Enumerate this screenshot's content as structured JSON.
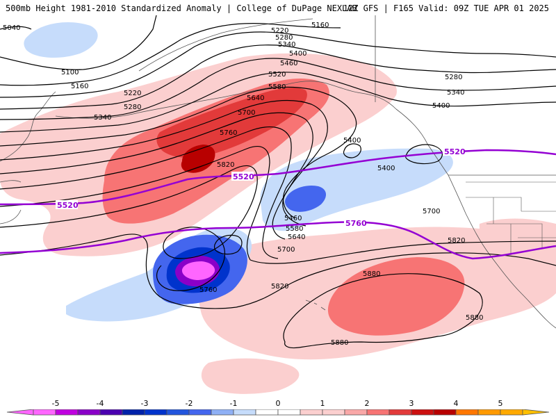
{
  "header": {
    "left": "500mb Height 1981-2010 Standardized Anomaly | College of DuPage NEXLAB",
    "right": "12Z GFS | F165 Valid: 09Z TUE APR 01 2025"
  },
  "colors": {
    "neg5": "#ff66ff",
    "neg4": "#8a00c8",
    "neg3": "#0033cc",
    "neg2": "#4466ee",
    "neg1": "#c6dcfb",
    "pos1": "#fbcfcf",
    "pos2": "#f77474",
    "pos3": "#e23a3a",
    "pos4": "#b80000",
    "pos5": "#ffaa00",
    "normal_line": "#9400d3",
    "height_contour": "#000000",
    "coastline": "#555555"
  },
  "contour_labels": {
    "c5040": "5040",
    "c5100": "5100",
    "c5160a": "5160",
    "c5160b": "5160",
    "c5220a": "5220",
    "c5220b": "5220",
    "c5280a": "5280",
    "c5280b": "5280",
    "c5280c": "5280",
    "c5340a": "5340",
    "c5340b": "5340",
    "c5340c": "5340",
    "c5400a": "5400",
    "c5400b": "5400",
    "c5400c": "5400",
    "c5400d": "5400",
    "c5460a": "5460",
    "c5460b": "5460",
    "c5520": "5520",
    "c5580a": "5580",
    "c5580b": "5580",
    "c5640a": "5640",
    "c5640b": "5640",
    "c5700a": "5700",
    "c5700b": "5700",
    "c5700c": "5700",
    "c5760a": "5760",
    "c5760b": "5760",
    "c5820a": "5820",
    "c5820b": "5820",
    "c5820c": "5820",
    "c5880a": "5880",
    "c5880b": "5880",
    "c5880c": "5880"
  },
  "normal_labels": {
    "n5520a": "5520",
    "n5520b": "5520",
    "n5520c": "5520",
    "n5760": "5760"
  },
  "colorbar": {
    "labels": [
      "-5",
      "-4",
      "-3",
      "-2",
      "-1",
      "0",
      "1",
      "2",
      "3",
      "4",
      "5"
    ]
  }
}
